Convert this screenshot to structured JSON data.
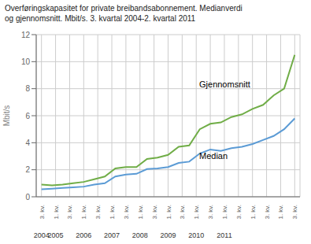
{
  "chart_data": {
    "type": "line",
    "title": "Overføringskapasitet for private breibandsabonnement. Medianverdi\nog gjennomsnitt. Mbit/s. 3. kvartal 2004-2. kvartal 2011",
    "y_label": "Mbit/s",
    "x": [
      0,
      1,
      2,
      3,
      4,
      5,
      6,
      7,
      8,
      9,
      10,
      11,
      12,
      13,
      14,
      15,
      16,
      17,
      18,
      19,
      20,
      21,
      22,
      23,
      24
    ],
    "series": [
      {
        "color": "#70ad47",
        "values": [
          0.9,
          0.85,
          0.9,
          1.0,
          1.1,
          1.3,
          1.5,
          2.1,
          2.2,
          2.2,
          2.8,
          2.9,
          3.1,
          3.7,
          3.8,
          5.0,
          5.4,
          5.5,
          5.9,
          6.1,
          6.5,
          6.8,
          7.5,
          8.0,
          10.5
        ]
      },
      {
        "color": "#5b9bd5",
        "values": [
          0.55,
          0.6,
          0.65,
          0.7,
          0.75,
          0.9,
          1.0,
          1.5,
          1.65,
          1.7,
          2.05,
          2.1,
          2.2,
          2.5,
          2.6,
          3.2,
          3.5,
          3.4,
          3.6,
          3.7,
          3.9,
          4.2,
          4.5,
          5.0,
          5.8
        ]
      }
    ],
    "xlim": [
      -0.5,
      24.5
    ],
    "xticks": [
      {
        "value": 0,
        "label": "3. kv."
      },
      {
        "value": 1.3333333333333333,
        "label": "1. kv."
      },
      {
        "value": 2.6666666666666665,
        "label": "3. kv."
      },
      {
        "value": 4,
        "label": "1. kv."
      },
      {
        "value": 5.333333333333333,
        "label": "3. kv."
      },
      {
        "value": 6.666666666666666,
        "label": "1. kv."
      },
      {
        "value": 8,
        "label": "3. kv."
      },
      {
        "value": 9.333333333333332,
        "label": "1. kv."
      },
      {
        "value": 10.666666666666666,
        "label": "3. kv."
      },
      {
        "value": 12,
        "label": "1. kv."
      },
      {
        "value": 13.333333333333332,
        "label": "3. kv."
      },
      {
        "value": 14.666666666666666,
        "label": "1. kv."
      },
      {
        "value": 16,
        "label": "3. kv."
      },
      {
        "value": 17.333333333333332,
        "label": "1. kv."
      },
      {
        "value": 18.666666666666664,
        "label": "3. kv."
      },
      {
        "value": 20,
        "label": "1. kv."
      },
      {
        "value": 21.333333333333332,
        "label": "3. kv."
      },
      {
        "value": 22.666666666666664,
        "label": "1. kv."
      },
      {
        "value": 24,
        "label": "3. kv."
      }
    ],
    "ylim": [
      0,
      12
    ],
    "yticks": [
      0,
      2,
      4,
      6,
      8,
      10,
      12
    ],
    "grid": true,
    "annotations": [
      {
        "text": "Gjennomsnitt",
        "x": 14.8,
        "y": 8.3
      },
      {
        "text": "Median",
        "x": 14.8,
        "y": 3.0
      },
      {
        "text": "2004",
        "x": 0
      },
      {
        "text": "2005",
        "x": 1.3333333333333333
      },
      {
        "text": "2006",
        "x": 4
      },
      {
        "text": "2007",
        "x": 6.666666666666666
      },
      {
        "text": "2008",
        "x": 9.333333333333332
      },
      {
        "text": "2009",
        "x": 12
      },
      {
        "text": "2010",
        "x": 14.666666666666666
      },
      {
        "text": "2011",
        "x": 17.333333333333332
      }
    ]
  }
}
